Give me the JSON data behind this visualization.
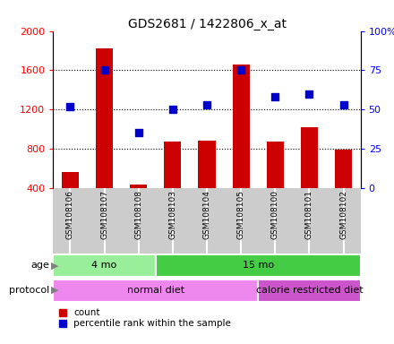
{
  "title": "GDS2681 / 1422806_x_at",
  "samples": [
    "GSM108106",
    "GSM108107",
    "GSM108108",
    "GSM108103",
    "GSM108104",
    "GSM108105",
    "GSM108100",
    "GSM108101",
    "GSM108102"
  ],
  "counts": [
    560,
    1820,
    430,
    870,
    880,
    1660,
    870,
    1020,
    790
  ],
  "percentile_ranks": [
    52,
    75,
    35,
    50,
    53,
    75,
    58,
    60,
    53
  ],
  "ylim_left": [
    400,
    2000
  ],
  "ylim_right": [
    0,
    100
  ],
  "yticks_left": [
    400,
    800,
    1200,
    1600,
    2000
  ],
  "ytick_labels_left": [
    "400",
    "800",
    "1200",
    "1600",
    "2000"
  ],
  "yticks_right": [
    0,
    25,
    50,
    75,
    100
  ],
  "ytick_labels_right": [
    "0",
    "25",
    "50",
    "75",
    "100%"
  ],
  "bar_color": "#cc0000",
  "dot_color": "#0000cc",
  "age_groups": [
    {
      "label": "4 mo",
      "start": 0,
      "end": 3,
      "color": "#99ee99"
    },
    {
      "label": "15 mo",
      "start": 3,
      "end": 9,
      "color": "#44cc44"
    }
  ],
  "protocol_groups": [
    {
      "label": "normal diet",
      "start": 0,
      "end": 6,
      "color": "#ee88ee"
    },
    {
      "label": "calorie restricted diet",
      "start": 6,
      "end": 9,
      "color": "#cc55cc"
    }
  ],
  "legend_count_color": "#cc0000",
  "legend_pct_color": "#0000cc",
  "tick_area_color": "#cccccc"
}
